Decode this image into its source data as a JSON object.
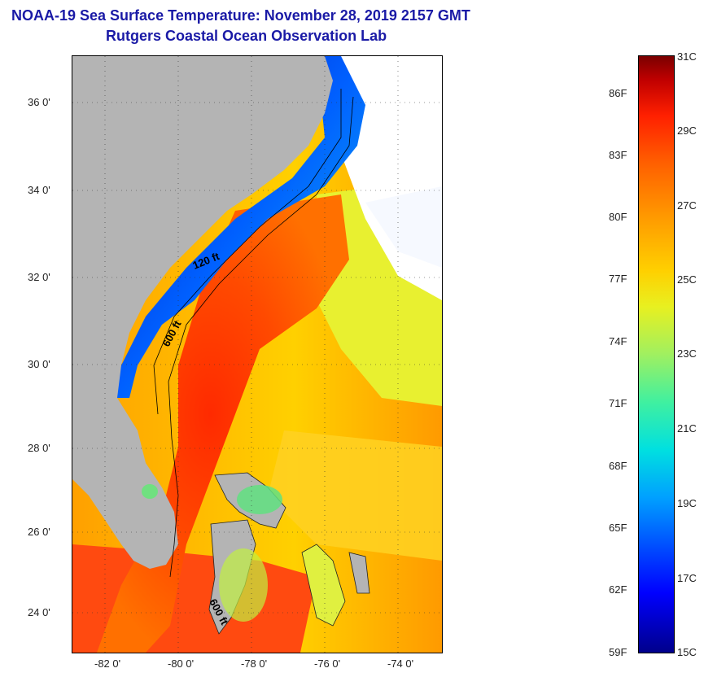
{
  "title": {
    "line1": "NOAA-19 Sea Surface Temperature:  November 28, 2019 2157 GMT",
    "line2": "Rutgers Coastal Ocean Observation Lab"
  },
  "axes": {
    "latitude_labels": [
      "36 0'",
      "34 0'",
      "32 0'",
      "30 0'",
      "28 0'",
      "26 0'",
      "24 0'"
    ],
    "longitude_labels": [
      "-82 0'",
      "-80 0'",
      "-78 0'",
      "-76 0'",
      "-74 0'"
    ]
  },
  "contours": {
    "label_120": "120 ft",
    "label_600a": "600 ft",
    "label_600b": "600 ft"
  },
  "colorbar": {
    "fahrenheit": [
      "86F",
      "83F",
      "80F",
      "77F",
      "74F",
      "71F",
      "68F",
      "65F",
      "62F",
      "59F"
    ],
    "celsius": [
      "31C",
      "29C",
      "27C",
      "25C",
      "23C",
      "21C",
      "19C",
      "17C",
      "15C"
    ]
  },
  "colors": {
    "title": "#1a1aa6",
    "land": "#b4b4b4",
    "cloud": "#ffffff",
    "gulf_stream": "#ff3000",
    "coastal_cold": "#0018d0"
  }
}
